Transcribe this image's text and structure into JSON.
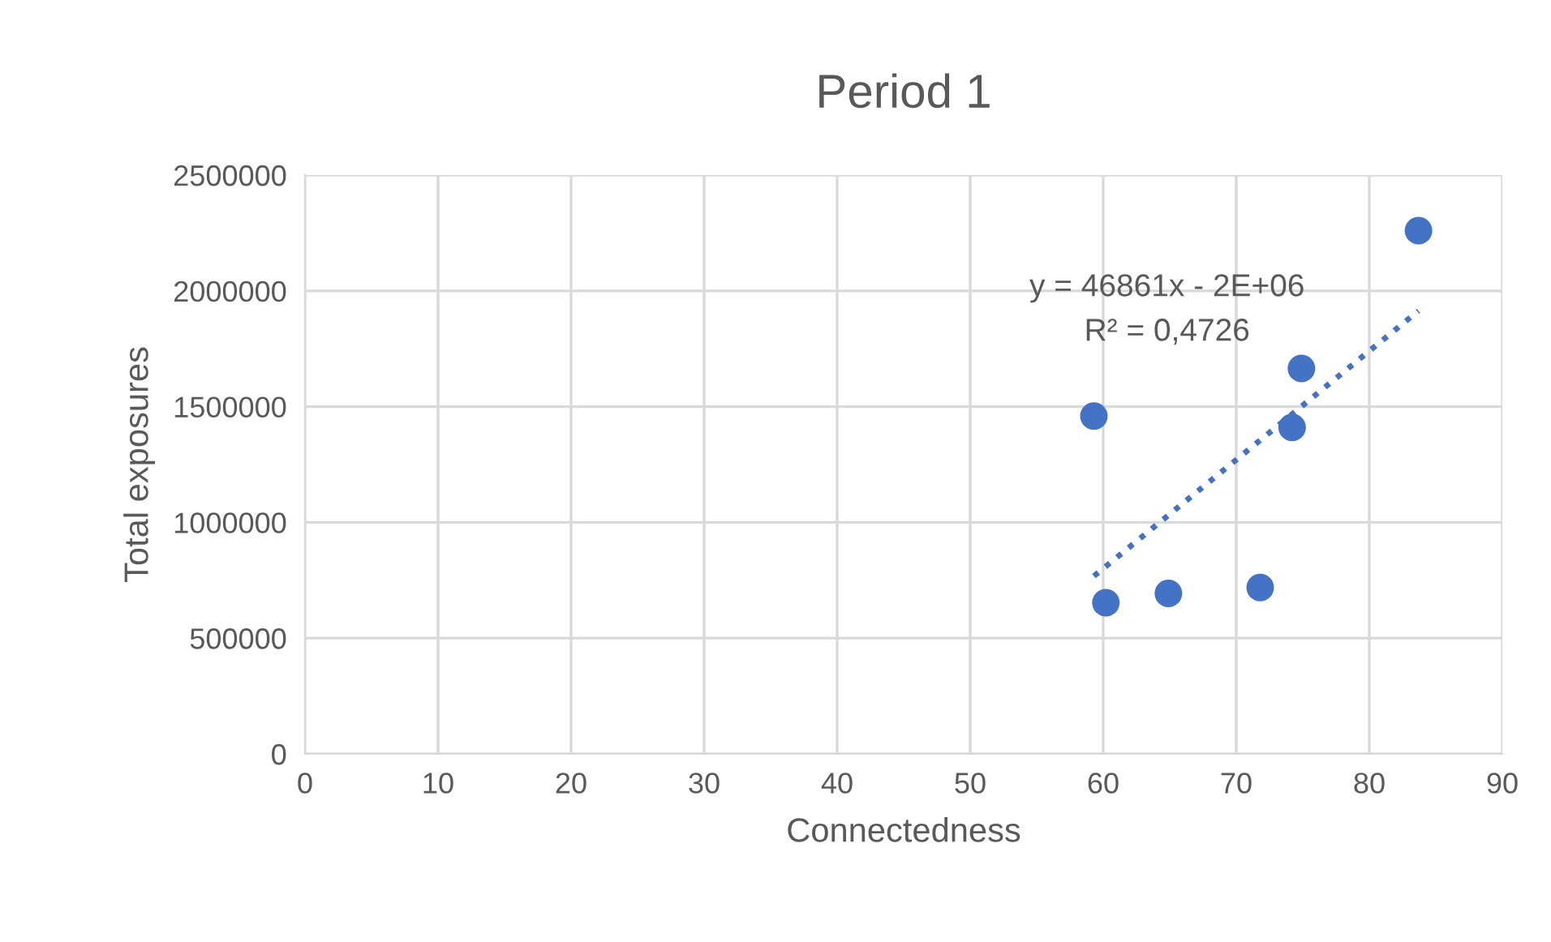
{
  "chart_data": {
    "type": "scatter",
    "title": "Period 1",
    "xlabel": "Connectedness",
    "ylabel": "Total exposures",
    "x": [
      59.3,
      60.2,
      64.9,
      71.8,
      74.2,
      74.9,
      83.7
    ],
    "series": [
      {
        "color": "#4472c4",
        "values": [
          1459000,
          653000,
          693000,
          719000,
          1410000,
          1665000,
          2260000
        ]
      },
      {
        "type": "line",
        "color": "#4472c4",
        "line_style": "dotted",
        "marker": "none",
        "x": [
          59.3,
          83.7
        ],
        "values": [
          768000,
          1914000
        ]
      }
    ],
    "annotations": [
      "y = 46861x - 2E+06",
      "R² = 0,4726"
    ],
    "xlim": [
      0,
      90
    ],
    "xticks": [
      0,
      10,
      20,
      30,
      40,
      50,
      60,
      70,
      80,
      90
    ],
    "ylim": [
      0,
      2500000
    ],
    "yticks": [
      0,
      500000,
      1000000,
      1500000,
      2000000,
      2500000
    ],
    "grid": true,
    "marker": "circle",
    "legend": false
  }
}
